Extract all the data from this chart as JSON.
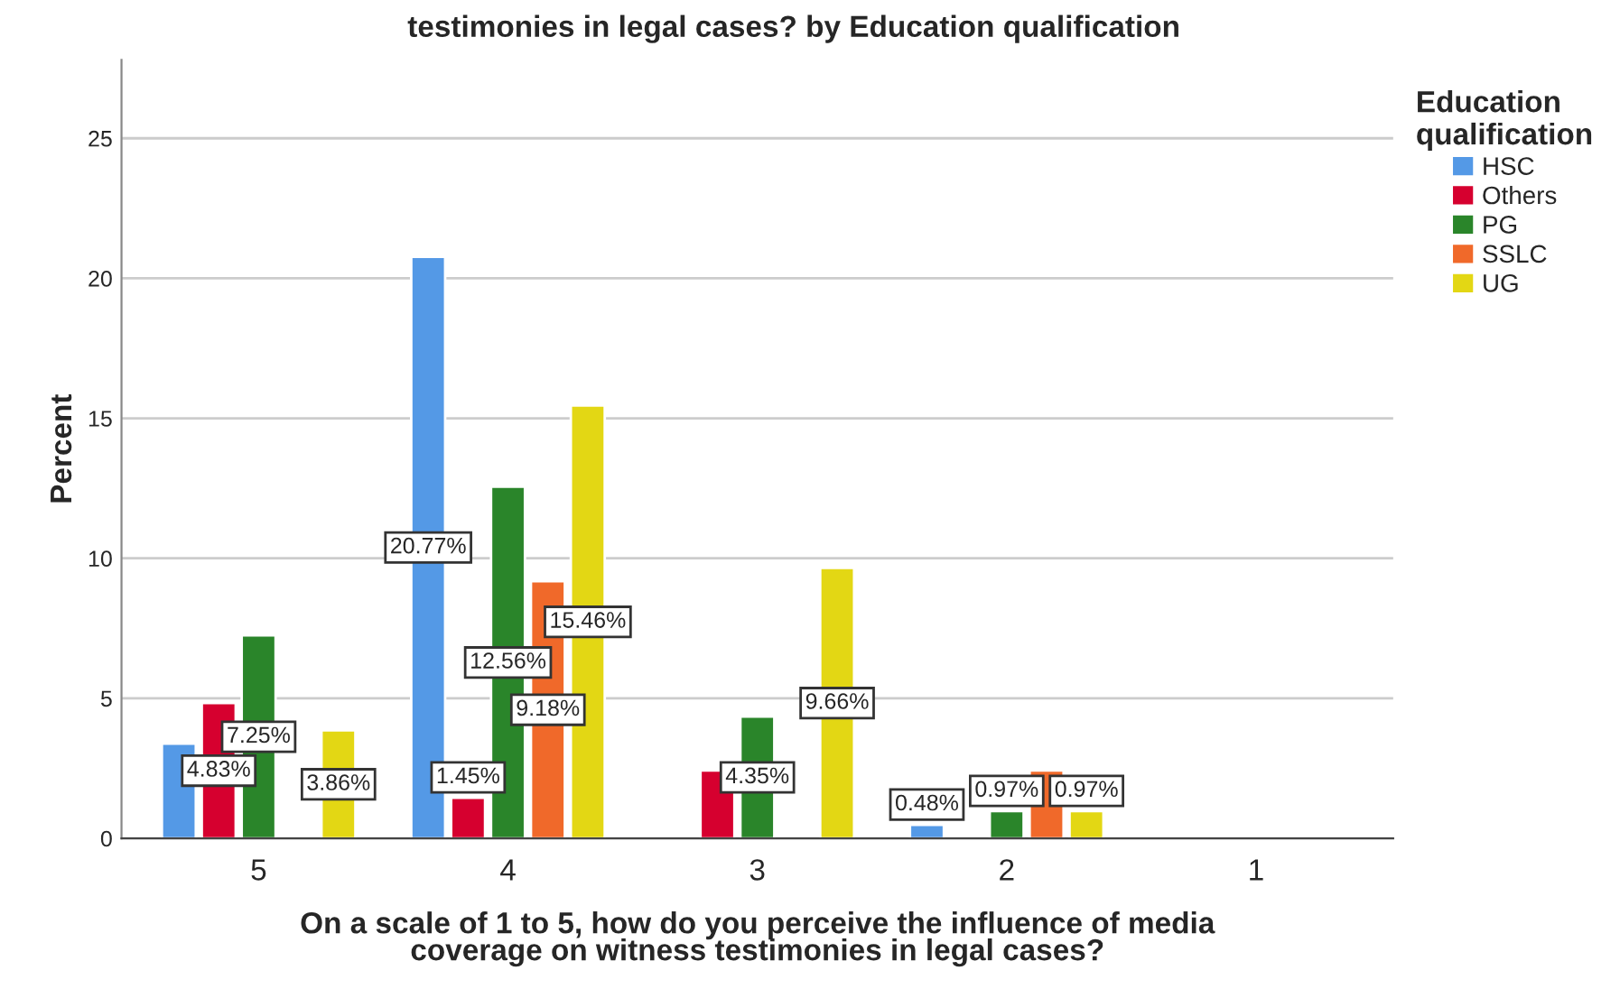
{
  "chart_data": {
    "type": "bar",
    "title": "testimonies in legal cases? by Education qualification",
    "xlabel": "On a scale of 1 to 5, how do you perceive the influence of media\ncoverage on witness testimonies in legal cases?",
    "ylabel": "Percent",
    "legend_title": "Education\nqualification",
    "categories": [
      "5",
      "4",
      "3",
      "2",
      "1"
    ],
    "series": [
      {
        "name": "HSC",
        "color": "#5499e6",
        "values": [
          3.38,
          20.77,
          null,
          0.48,
          null
        ],
        "value_labels": [
          null,
          "20.77%",
          null,
          "0.48%",
          null
        ]
      },
      {
        "name": "Others",
        "color": "#d6002f",
        "values": [
          4.83,
          1.45,
          2.42,
          null,
          null
        ],
        "value_labels": [
          "4.83%",
          "1.45%",
          null,
          null,
          null
        ]
      },
      {
        "name": "PG",
        "color": "#2a852a",
        "values": [
          7.25,
          12.56,
          4.35,
          0.97,
          null
        ],
        "value_labels": [
          "7.25%",
          "12.56%",
          "4.35%",
          "0.97%",
          null
        ]
      },
      {
        "name": "SSLC",
        "color": "#f0692a",
        "values": [
          null,
          9.18,
          null,
          2.42,
          null
        ],
        "value_labels": [
          null,
          "9.18%",
          null,
          null,
          null
        ]
      },
      {
        "name": "UG",
        "color": "#e3d714",
        "values": [
          3.86,
          15.46,
          9.66,
          0.97,
          null
        ],
        "value_labels": [
          "3.86%",
          "15.46%",
          "9.66%",
          "0.97%",
          null
        ]
      }
    ],
    "ylim": [
      0,
      27.8
    ],
    "yticks": [
      0,
      5,
      10,
      15,
      20,
      25
    ],
    "grid": "y",
    "legend": "top right"
  }
}
